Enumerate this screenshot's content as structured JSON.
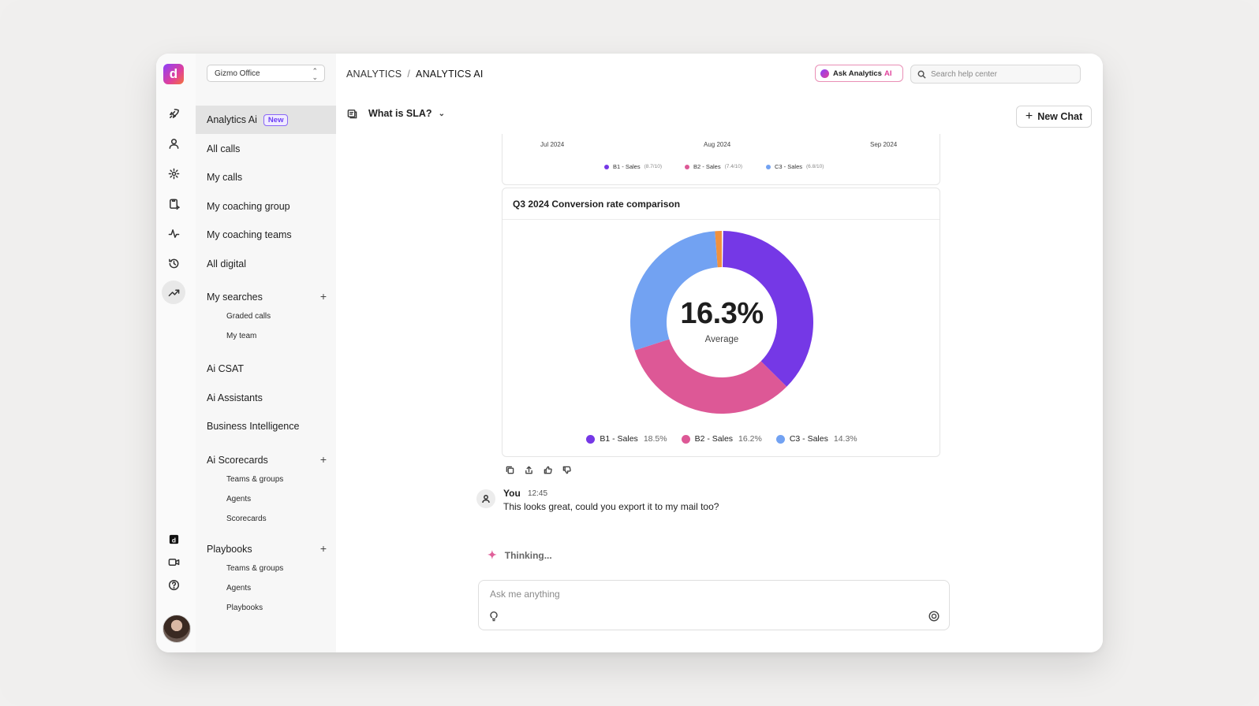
{
  "app": {
    "logo_letter": "d"
  },
  "org_select": {
    "value": "Gizmo Office"
  },
  "breadcrumb": {
    "parent": "ANALYTICS",
    "separator": "/",
    "current": "ANALYTICS AI"
  },
  "header": {
    "ask_button": {
      "label": "Ask Analytics",
      "suffix": "AI"
    },
    "search": {
      "placeholder": "Search help center"
    }
  },
  "rail": {
    "icons": [
      "rocket-icon",
      "user-icon",
      "gear-icon",
      "clipboard-sparkle-icon",
      "activity-icon",
      "history-icon",
      "trending-up-icon"
    ],
    "bottom_icons": [
      "brand-icon",
      "video-icon",
      "help-icon"
    ]
  },
  "sidebar": {
    "items": [
      {
        "label": "Analytics Ai",
        "badge": "New"
      },
      {
        "label": "All calls"
      },
      {
        "label": "My calls"
      },
      {
        "label": "My coaching group"
      },
      {
        "label": "My coaching teams"
      },
      {
        "label": "All digital"
      }
    ],
    "my_searches": {
      "label": "My searches",
      "children": [
        "Graded calls",
        "My team"
      ]
    },
    "mid_items": [
      "Ai CSAT",
      "Ai Assistants",
      "Business Intelligence"
    ],
    "ai_scorecards": {
      "label": "Ai Scorecards",
      "children": [
        "Teams & groups",
        "Agents",
        "Scorecards"
      ]
    },
    "playbooks": {
      "label": "Playbooks",
      "children": [
        "Teams & groups",
        "Agents",
        "Playbooks"
      ]
    }
  },
  "chat": {
    "title": "What is SLA?",
    "new_chat_label": "New Chat",
    "prev_chart": {
      "x_ticks": [
        "Jul 2024",
        "Aug 2024",
        "Sep 2024"
      ],
      "legend": [
        {
          "name": "B1 - Sales",
          "score": "(8.7/10)"
        },
        {
          "name": "B2 - Sales",
          "score": "(7.4/10)"
        },
        {
          "name": "C3 - Sales",
          "score": "(6.8/10)"
        }
      ]
    },
    "message": {
      "author": "You",
      "time": "12:45",
      "text": "This looks great, could you export it to my mail too?"
    },
    "thinking": "Thinking...",
    "composer_placeholder": "Ask me anything"
  },
  "chart_data": {
    "type": "pie",
    "title": "Q3 2024 Conversion rate comparison",
    "center_value": "16.3%",
    "center_label": "Average",
    "series": [
      {
        "name": "B1 - Sales",
        "value": 18.5,
        "label": "18.5%",
        "color": "#7538e6"
      },
      {
        "name": "B2 - Sales",
        "value": 16.2,
        "label": "16.2%",
        "color": "#dd5896"
      },
      {
        "name": "C3 - Sales",
        "value": 14.3,
        "label": "14.3%",
        "color": "#72a2f2"
      }
    ],
    "legend_position": "bottom",
    "colors": {
      "B1 - Sales": "#7538e6",
      "B2 - Sales": "#dd5896",
      "C3 - Sales": "#72a2f2"
    }
  }
}
